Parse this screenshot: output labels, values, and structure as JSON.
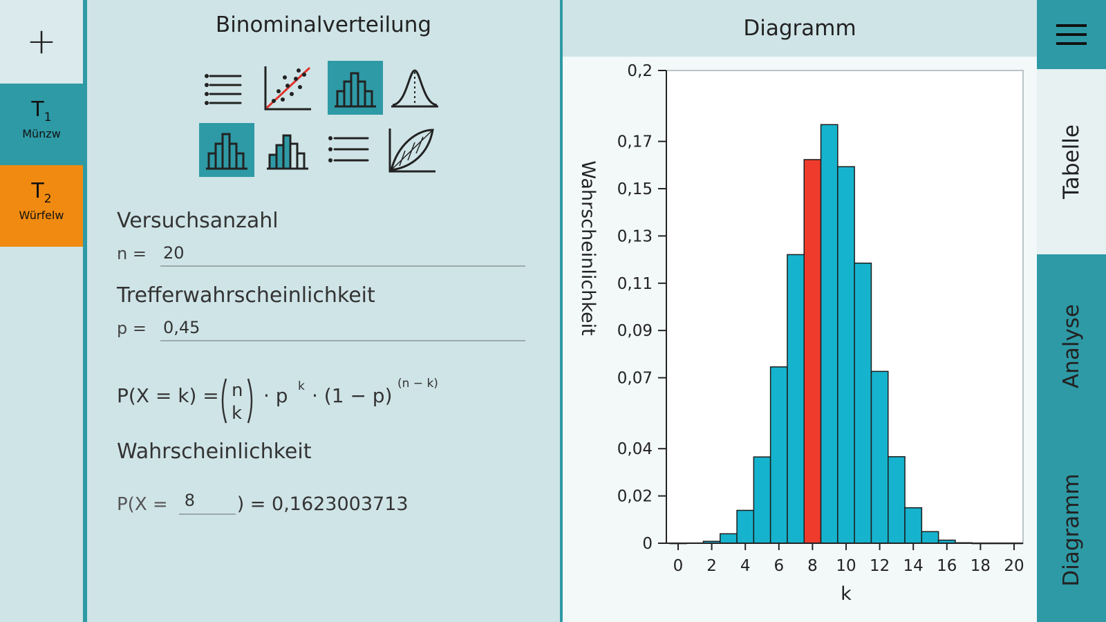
{
  "left_rail": {
    "add_label": "+",
    "tabs": [
      {
        "num": "T",
        "sub": "1",
        "label": "Münzw"
      },
      {
        "num": "T",
        "sub": "2",
        "label": "Würfelw"
      }
    ]
  },
  "settings": {
    "title": "Binominalverteilung",
    "icons": [
      "list-icon",
      "scatter-regression-icon",
      "histogram-icon",
      "normal-curve-icon",
      "binomial-histogram-icon",
      "cumulative-histogram-icon",
      "list-detail-icon",
      "lens-curve-icon"
    ],
    "trials_label": "Versuchsanzahl",
    "n_prefix": "n =",
    "n_value": "20",
    "prob_label": "Trefferwahrscheinlichkeit",
    "p_prefix": "p =",
    "p_value": "0,45",
    "formula": {
      "lhs": "P(X = k) =",
      "binom_top": "n",
      "binom_bottom": "k",
      "term1": "· p",
      "term1_sup": "k",
      "term2": "· (1 − p)",
      "term2_sup": "(n − k)"
    },
    "result_label": "Wahrscheinlichkeit",
    "result_prefix": "P(X =",
    "k_value": "8",
    "result_suffix": ") = 0,1623003713"
  },
  "chart_header": "Diagramm",
  "right_rail": {
    "tabs": [
      "Tabelle",
      "Analyse",
      "Diagramm"
    ]
  },
  "chart_data": {
    "type": "bar",
    "xlabel": "k",
    "ylabel": "Wahrscheinlichkeit",
    "x": [
      0,
      1,
      2,
      3,
      4,
      5,
      6,
      7,
      8,
      9,
      10,
      11,
      12,
      13,
      14,
      15,
      16,
      17,
      18,
      19,
      20
    ],
    "values": [
      0.0,
      0.0001,
      0.0008,
      0.004,
      0.0139,
      0.0365,
      0.0746,
      0.1221,
      0.1623,
      0.1771,
      0.1593,
      0.1185,
      0.0727,
      0.0366,
      0.015,
      0.0049,
      0.0013,
      0.0002,
      0.0,
      0.0,
      0.0
    ],
    "highlight_index": 8,
    "xlim": [
      0,
      20
    ],
    "ylim": [
      0,
      0.2
    ],
    "x_ticks": [
      "0",
      "2",
      "4",
      "6",
      "8",
      "10",
      "12",
      "14",
      "16",
      "18",
      "20"
    ],
    "y_ticks": [
      {
        "value": 0,
        "label": "0"
      },
      {
        "value": 0.02,
        "label": "0,02"
      },
      {
        "value": 0.04,
        "label": "0,04"
      },
      {
        "value": 0.07,
        "label": "0,07"
      },
      {
        "value": 0.09,
        "label": "0,09"
      },
      {
        "value": 0.11,
        "label": "0,11"
      },
      {
        "value": 0.13,
        "label": "0,13"
      },
      {
        "value": 0.15,
        "label": "0,15"
      },
      {
        "value": 0.17,
        "label": "0,17"
      },
      {
        "value": 0.2,
        "label": "0,2"
      }
    ],
    "colors": {
      "bar": "#16b3ce",
      "highlight": "#ef3b2c"
    }
  }
}
